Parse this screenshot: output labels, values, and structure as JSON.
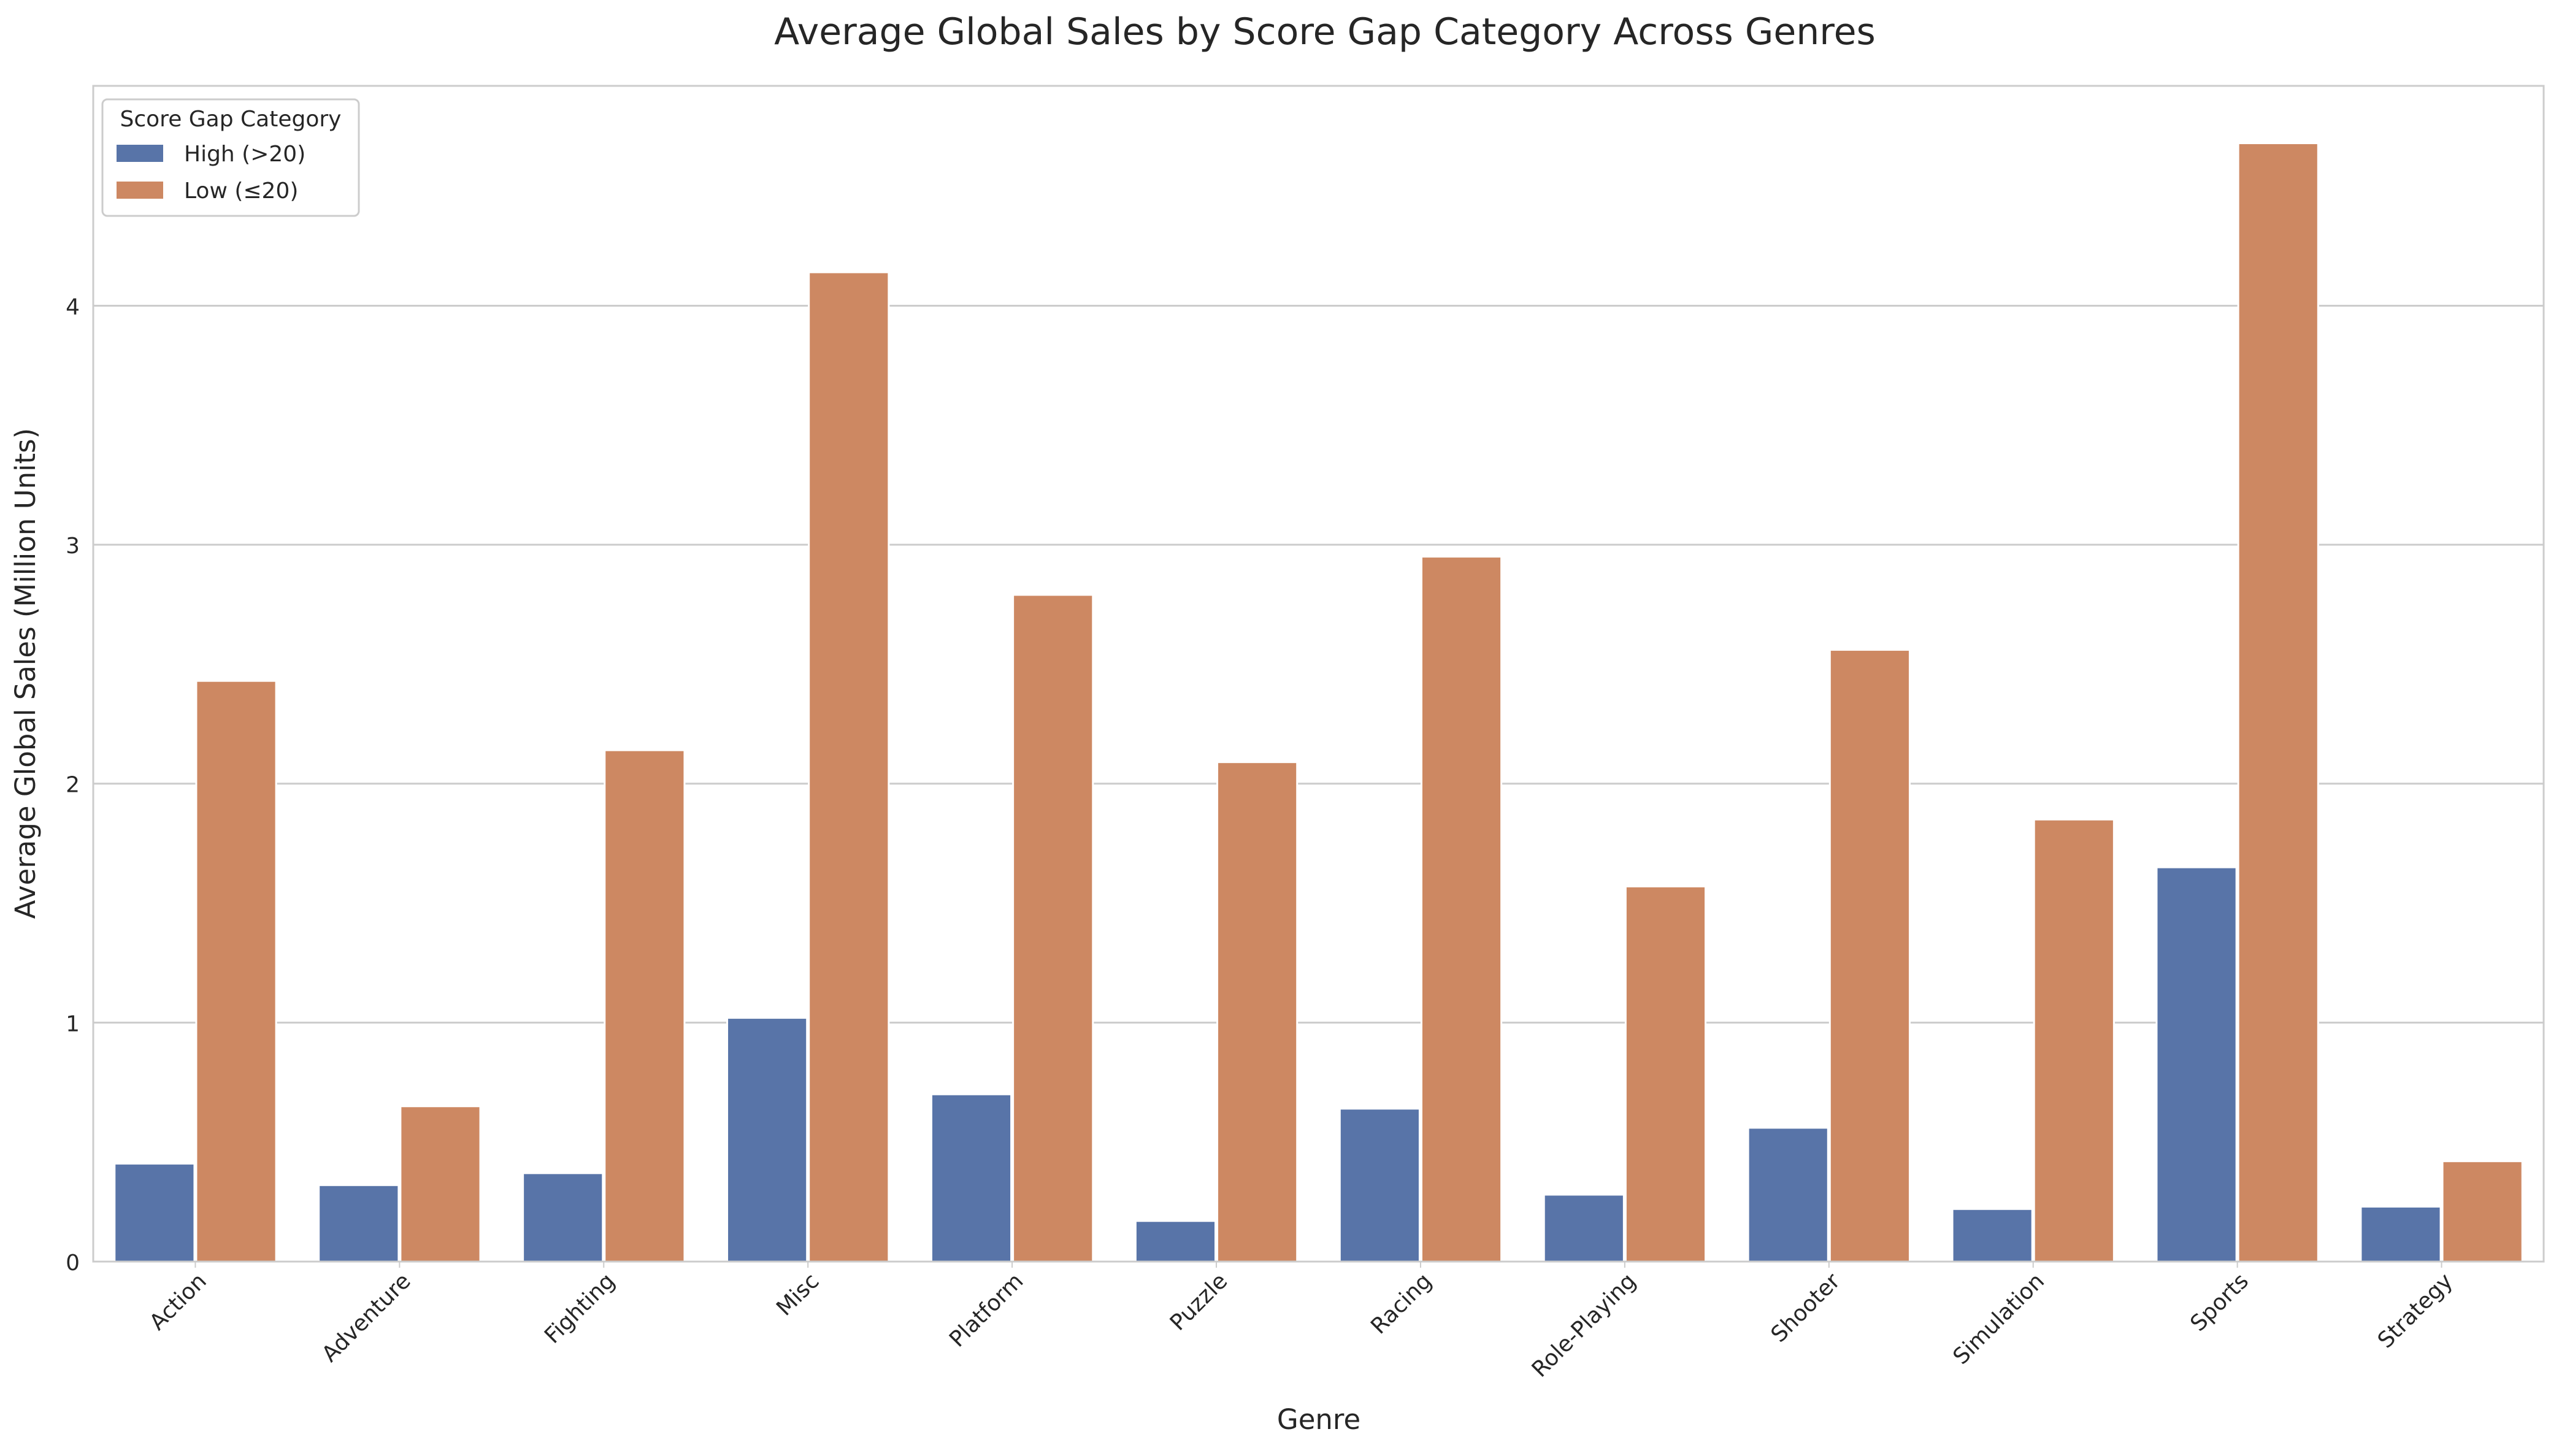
{
  "chart_data": {
    "type": "bar",
    "title": "Average Global Sales by Score Gap Category Across Genres",
    "xlabel": "Genre",
    "ylabel": "Average Global Sales (Million Units)",
    "categories": [
      "Action",
      "Adventure",
      "Fighting",
      "Misc",
      "Platform",
      "Puzzle",
      "Racing",
      "Role-Playing",
      "Shooter",
      "Simulation",
      "Sports",
      "Strategy"
    ],
    "series": [
      {
        "name": "High (>20)",
        "color": "#5874a8",
        "values": [
          0.41,
          0.32,
          0.37,
          1.02,
          0.7,
          0.17,
          0.64,
          0.28,
          0.56,
          0.22,
          1.65,
          0.23
        ]
      },
      {
        "name": "Low (≤20)",
        "color": "#cd8862",
        "values": [
          2.43,
          0.65,
          2.14,
          4.14,
          2.79,
          2.09,
          2.95,
          1.57,
          2.56,
          1.85,
          4.68,
          0.42
        ]
      }
    ],
    "ylim": [
      0,
      4.92
    ],
    "yticks": [
      0,
      1,
      2,
      3,
      4
    ],
    "grid": "horizontal",
    "legend": {
      "title": "Score Gap Category",
      "placement": "top-left"
    }
  }
}
